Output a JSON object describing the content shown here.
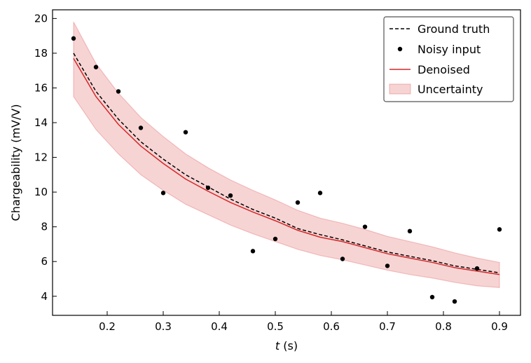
{
  "chart_data": {
    "type": "line",
    "xlabel_var": "t",
    "xlabel_unit": " (s)",
    "ylabel": "Chargeability (mV/V)",
    "xlim": [
      0.1025,
      0.9375
    ],
    "ylim": [
      2.9,
      20.5
    ],
    "xticks": [
      0.2,
      0.3,
      0.4,
      0.5,
      0.6,
      0.7,
      0.8,
      0.9
    ],
    "xtick_labels": [
      "0.2",
      "0.3",
      "0.4",
      "0.5",
      "0.6",
      "0.7",
      "0.8",
      "0.9"
    ],
    "yticks": [
      4,
      6,
      8,
      10,
      12,
      14,
      16,
      18,
      20
    ],
    "ytick_labels": [
      "4",
      "6",
      "8",
      "10",
      "12",
      "14",
      "16",
      "18",
      "20"
    ],
    "x": [
      0.14,
      0.18,
      0.22,
      0.26,
      0.3,
      0.34,
      0.38,
      0.42,
      0.46,
      0.5,
      0.54,
      0.58,
      0.62,
      0.66,
      0.7,
      0.74,
      0.78,
      0.82,
      0.86,
      0.9
    ],
    "series": [
      {
        "name": "Ground truth",
        "style": "dashed",
        "color": "#000000",
        "values": [
          18.0,
          15.8,
          14.2,
          12.9,
          11.9,
          11.0,
          10.3,
          9.6,
          9.0,
          8.5,
          7.9,
          7.55,
          7.25,
          6.9,
          6.55,
          6.3,
          6.05,
          5.75,
          5.55,
          5.35
        ]
      },
      {
        "name": "Noisy input",
        "style": "markers",
        "color": "#000000",
        "values": [
          18.85,
          17.2,
          15.8,
          13.7,
          9.95,
          13.45,
          10.25,
          9.8,
          6.6,
          7.3,
          9.4,
          9.95,
          6.15,
          8.0,
          5.75,
          7.75,
          3.95,
          3.7,
          5.6,
          7.85
        ]
      },
      {
        "name": "Denoised",
        "style": "solid",
        "color": "#d62728",
        "values": [
          17.7,
          15.5,
          13.9,
          12.65,
          11.65,
          10.75,
          10.05,
          9.4,
          8.85,
          8.35,
          7.8,
          7.4,
          7.15,
          6.8,
          6.45,
          6.2,
          5.95,
          5.65,
          5.45,
          5.25
        ]
      },
      {
        "name": "Uncertainty",
        "style": "band",
        "color": "#d62728",
        "upper": [
          19.8,
          17.4,
          15.7,
          14.3,
          13.2,
          12.2,
          11.4,
          10.7,
          10.1,
          9.55,
          8.95,
          8.5,
          8.2,
          7.85,
          7.45,
          7.15,
          6.85,
          6.5,
          6.2,
          5.95
        ],
        "lower": [
          15.5,
          13.6,
          12.2,
          11.0,
          10.1,
          9.3,
          8.7,
          8.1,
          7.6,
          7.15,
          6.7,
          6.35,
          6.1,
          5.8,
          5.5,
          5.25,
          5.05,
          4.8,
          4.6,
          4.5
        ]
      }
    ],
    "legend_position": "top-right",
    "grid": false
  }
}
